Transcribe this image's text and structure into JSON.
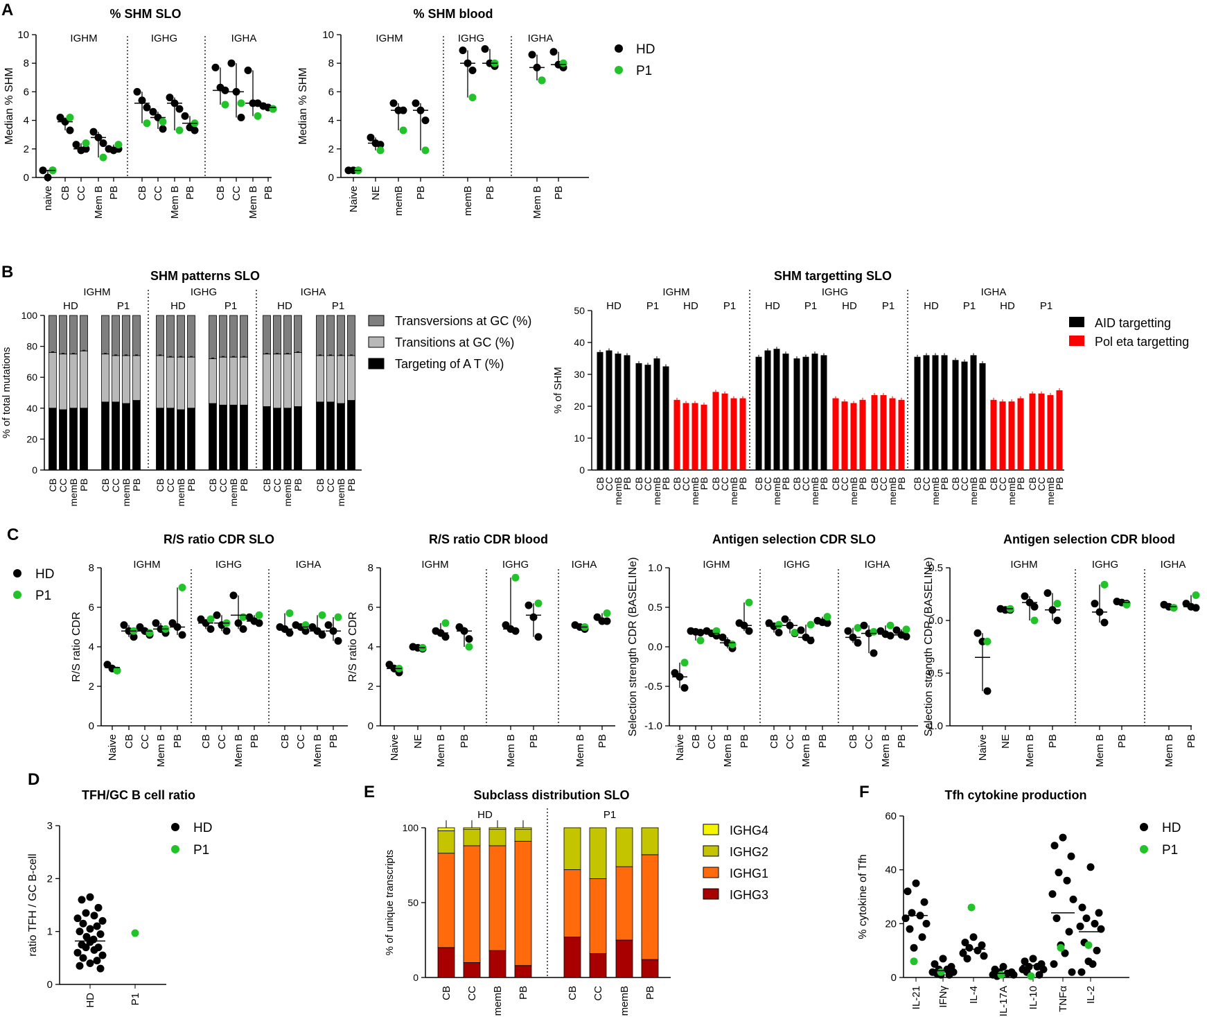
{
  "colors": {
    "hd": "#000000",
    "p1": "#22c32a",
    "aid": "#000000",
    "poleta": "#ff0000",
    "transv": "#7f7f7f",
    "transit": "#b8b8b8",
    "at": "#000000",
    "ighg4": "#f5f500",
    "ighg2": "#c4c400",
    "ighg1": "#ff6a0d",
    "ighg3": "#a80000"
  },
  "panel_letters": [
    "A",
    "B",
    "C",
    "D",
    "E",
    "F"
  ],
  "legends": {
    "hd_p1": [
      "HD",
      "P1"
    ],
    "shm_patterns": [
      "Transversions at GC (%)",
      "Transitions at GC (%)",
      "Targeting of A T (%)"
    ],
    "targeting": [
      "AID targetting",
      "Pol eta targetting"
    ],
    "subclass": [
      "IGHG4",
      "IGHG2",
      "IGHG1",
      "IGHG3"
    ]
  },
  "chart_data": [
    {
      "id": "a1",
      "type": "scatter",
      "title": "% SHM SLO",
      "ylabel": "Median % SHM",
      "ylim": [
        0,
        10
      ],
      "yticks": [
        0,
        2,
        4,
        6,
        8,
        10
      ],
      "groups": [
        {
          "label": "",
          "cats": [
            "naive"
          ]
        },
        {
          "label": "IGHM",
          "cats": [
            "CB",
            "CC",
            "Mem B",
            "PB"
          ]
        },
        {
          "label": "IGHG",
          "cats": [
            "CB",
            "CC",
            "Mem B",
            "PB"
          ]
        },
        {
          "label": "IGHA",
          "cats": [
            "CB",
            "CC",
            "Mem B",
            "PB"
          ]
        }
      ],
      "group_header_span": [
        [
          0,
          1
        ],
        [
          2
        ],
        [
          3
        ]
      ],
      "hd": [
        [
          0.5,
          0,
          0.5
        ],
        [
          4.2,
          3.9,
          3.3
        ],
        [
          2.3,
          1.9,
          2.0
        ],
        [
          3.2,
          2.8,
          2.4
        ],
        [
          2.0,
          1.9,
          2.0
        ],
        [
          6.0,
          5.4,
          4.9
        ],
        [
          4.6,
          4.2,
          3.4
        ],
        [
          5.6,
          5.2,
          4.8
        ],
        [
          4.3,
          3.5,
          3.3
        ],
        [
          7.7,
          6.3,
          6.1
        ],
        [
          8.0,
          6.0,
          4.2
        ],
        [
          7.5,
          5.2,
          5.2
        ],
        [
          5.0,
          4.9,
          4.8
        ]
      ],
      "p1": [
        0.5,
        4.2,
        2.4,
        1.4,
        2.3,
        3.8,
        3.9,
        3.3,
        3.8,
        5.1,
        5.2,
        4.3,
        4.8
      ],
      "median": [
        0.5,
        3.9,
        2.0,
        2.8,
        2.0,
        5.2,
        4.2,
        5.2,
        3.8,
        6.1,
        6.0,
        5.2,
        4.9
      ]
    },
    {
      "id": "a2",
      "type": "scatter",
      "title": "% SHM blood",
      "ylabel": "Median % SHM",
      "ylim": [
        0,
        10
      ],
      "yticks": [
        0,
        2,
        4,
        6,
        8,
        10
      ],
      "groups": [
        {
          "label": "IGHM",
          "cats": [
            "Naive",
            "NE",
            "memB",
            "PB"
          ]
        },
        {
          "label": "IGHG",
          "cats": [
            "memB",
            "PB"
          ]
        },
        {
          "label": "IGHA",
          "cats": [
            "Mem B",
            "PB"
          ]
        }
      ],
      "hd": [
        [
          0.5,
          0.5,
          0.5
        ],
        [
          2.8,
          2.4,
          2.3
        ],
        [
          5.2,
          4.7,
          4.7
        ],
        [
          5.2,
          4.7,
          4.0
        ],
        [
          8.9,
          8.0,
          7.5
        ],
        [
          9.0,
          8.0,
          7.8
        ],
        [
          8.6,
          7.7,
          6.8
        ],
        [
          8.8,
          7.9,
          7.7
        ]
      ],
      "p1": [
        0.5,
        1.9,
        3.3,
        1.9,
        5.6,
        8.0,
        6.8,
        8.0
      ],
      "median": [
        0.5,
        2.4,
        4.7,
        4.7,
        8.0,
        8.0,
        7.7,
        7.9
      ]
    },
    {
      "id": "b1",
      "type": "stacked-bar",
      "title": "SHM patterns SLO",
      "ylabel": "% of total mutations",
      "ylim": [
        0,
        100
      ],
      "yticks": [
        0,
        20,
        40,
        60,
        80,
        100
      ],
      "headers": [
        "IGHM",
        "IGHG",
        "IGHA"
      ],
      "subheaders": [
        "HD",
        "P1",
        "HD",
        "P1",
        "HD",
        "P1"
      ],
      "cats": [
        "CB",
        "CC",
        "memB",
        "PB"
      ],
      "at": [
        40,
        39,
        40,
        40,
        44,
        44,
        43,
        45,
        40,
        40,
        39,
        40,
        43,
        42,
        42,
        42,
        41,
        40,
        40,
        41,
        44,
        44,
        43,
        45
      ],
      "transit": [
        36,
        36,
        35,
        37,
        31,
        30,
        31,
        29,
        34,
        33,
        34,
        33,
        29,
        31,
        31,
        31,
        34,
        35,
        35,
        35,
        30,
        30,
        31,
        29
      ]
    },
    {
      "id": "b2",
      "type": "bar",
      "title": "SHM targetting SLO",
      "ylabel": "% of SHM",
      "ylim": [
        0,
        50
      ],
      "yticks": [
        0,
        10,
        20,
        30,
        40,
        50
      ],
      "headers": [
        "IGHM",
        "IGHG",
        "IGHA"
      ],
      "subheaders": [
        "HD",
        "P1",
        "HD",
        "P1"
      ],
      "cats": [
        "CB",
        "CC",
        "memB",
        "PB"
      ],
      "aid": [
        [
          37,
          37.5,
          36.5,
          36
        ],
        [
          33.5,
          33,
          35,
          32.5
        ],
        [
          35.5,
          37.5,
          38,
          36.5
        ],
        [
          35,
          35.5,
          36.5,
          36
        ],
        [
          35.5,
          36,
          36,
          36
        ],
        [
          34.5,
          34,
          36,
          33.5
        ]
      ],
      "poleta": [
        [
          22,
          21,
          21,
          20.5
        ],
        [
          24.5,
          24,
          22.5,
          22.5
        ],
        [
          22.5,
          21.5,
          21,
          22
        ],
        [
          23.5,
          23.5,
          22.5,
          22
        ],
        [
          22,
          21.5,
          21.5,
          22.5
        ],
        [
          24,
          24,
          23.5,
          25
        ]
      ]
    },
    {
      "id": "c1",
      "type": "scatter",
      "title": "R/S ratio CDR SLO",
      "ylabel": "R/S ratio CDR",
      "ylim": [
        0,
        8
      ],
      "yticks": [
        0,
        2,
        4,
        6,
        8
      ],
      "groups": [
        {
          "label": "IGHM",
          "cats": [
            "Naive",
            "CB",
            "CC",
            "Mem B",
            "PB"
          ]
        },
        {
          "label": "IGHG",
          "cats": [
            "CB",
            "CC",
            "Mem B",
            "PB"
          ]
        },
        {
          "label": "IGHA",
          "cats": [
            "CB",
            "CC",
            "Mem B",
            "PB"
          ]
        }
      ],
      "hd": [
        [
          3.1,
          2.9,
          2.8
        ],
        [
          5.1,
          4.8,
          4.5
        ],
        [
          5.0,
          4.8,
          4.6
        ],
        [
          5.2,
          4.9,
          4.7
        ],
        [
          5.2,
          5.0,
          4.6
        ],
        [
          5.4,
          5.2,
          4.9
        ],
        [
          5.6,
          5.1,
          4.8
        ],
        [
          6.6,
          5.2,
          4.9
        ],
        [
          5.5,
          5.3,
          5.2
        ],
        [
          5.0,
          4.9,
          4.7
        ],
        [
          5.1,
          5.0,
          4.8
        ],
        [
          5.0,
          4.8,
          4.6
        ],
        [
          5.1,
          4.8,
          4.3
        ]
      ],
      "p1": [
        2.8,
        4.8,
        4.7,
        4.9,
        7.0,
        5.4,
        5.2,
        5.5,
        5.6,
        5.7,
        5.1,
        5.6,
        5.5
      ],
      "median": [
        2.95,
        4.8,
        4.8,
        4.9,
        5.0,
        5.2,
        5.2,
        5.6,
        5.3,
        4.9,
        5.0,
        4.8,
        4.8
      ]
    },
    {
      "id": "c2",
      "type": "scatter",
      "title": "R/S ratio CDR blood",
      "ylabel": "R/S ratio CDR",
      "ylim": [
        0,
        8
      ],
      "yticks": [
        0,
        2,
        4,
        6,
        8
      ],
      "groups": [
        {
          "label": "IGHM",
          "cats": [
            "Naive",
            "NE",
            "Mem B",
            "PB"
          ]
        },
        {
          "label": "IGHG",
          "cats": [
            "Mem B",
            "PB"
          ]
        },
        {
          "label": "IGHA",
          "cats": [
            "Mem B",
            "PB"
          ]
        }
      ],
      "hd": [
        [
          3.1,
          2.9,
          2.7
        ],
        [
          4.0,
          3.95,
          3.9
        ],
        [
          4.8,
          4.7,
          4.5
        ],
        [
          5.0,
          4.8,
          4.4
        ],
        [
          5.1,
          4.9,
          4.8
        ],
        [
          6.1,
          5.5,
          4.5
        ],
        [
          5.1,
          5.0,
          4.9
        ],
        [
          5.5,
          5.3,
          5.3
        ]
      ],
      "p1": [
        2.9,
        3.95,
        5.2,
        4.0,
        7.5,
        6.2,
        5.0,
        5.7
      ],
      "median": [
        2.9,
        3.95,
        4.7,
        4.8,
        4.9,
        5.6,
        5.0,
        5.4
      ]
    },
    {
      "id": "c3",
      "type": "scatter",
      "title": "Antigen selection CDR SLO",
      "ylabel": "Selection strength CDR (BASELINe)",
      "ylim": [
        -1,
        1
      ],
      "yticks": [
        -1.0,
        -0.5,
        0.0,
        0.5,
        1.0
      ],
      "groups": [
        {
          "label": "IGHM",
          "cats": [
            "Naive",
            "CB",
            "CC",
            "Mem B",
            "PB"
          ]
        },
        {
          "label": "IGHG",
          "cats": [
            "CB",
            "CC",
            "Mem B",
            "PB"
          ]
        },
        {
          "label": "IGHA",
          "cats": [
            "CB",
            "CC",
            "Mem B",
            "PB"
          ]
        }
      ],
      "hd": [
        [
          -0.33,
          -0.38,
          -0.52
        ],
        [
          0.2,
          0.19,
          0.18
        ],
        [
          0.2,
          0.17,
          0.14
        ],
        [
          0.12,
          0.05,
          -0.02
        ],
        [
          0.3,
          0.27,
          0.2
        ],
        [
          0.3,
          0.26,
          0.18
        ],
        [
          0.35,
          0.27,
          0.17
        ],
        [
          0.21,
          0.12,
          0.08
        ],
        [
          0.33,
          0.31,
          0.3
        ],
        [
          0.2,
          0.12,
          0.05
        ],
        [
          0.27,
          0.17,
          -0.08
        ],
        [
          0.2,
          0.16,
          0.14
        ],
        [
          0.21,
          0.15,
          0.13
        ]
      ],
      "p1": [
        -0.2,
        0.08,
        0.2,
        0.03,
        0.56,
        0.28,
        0.18,
        0.28,
        0.38,
        0.24,
        0.19,
        0.27,
        0.22
      ],
      "median": [
        -0.38,
        0.19,
        0.17,
        0.05,
        0.27,
        0.26,
        0.27,
        0.12,
        0.31,
        0.12,
        0.17,
        0.16,
        0.15
      ]
    },
    {
      "id": "c4",
      "type": "scatter",
      "title": "Antigen selection CDR blood",
      "ylabel": "Selection strength CDR (BASELINe)",
      "ylim": [
        -1,
        0.5
      ],
      "yticks": [
        -1.0,
        -0.5,
        0.0,
        0.5
      ],
      "groups": [
        {
          "label": "IGHM",
          "cats": [
            "Naive",
            "NE",
            "Mem B",
            "PB"
          ]
        },
        {
          "label": "IGHG",
          "cats": [
            "Mem B",
            "PB"
          ]
        },
        {
          "label": "IGHA",
          "cats": [
            "Mem B",
            "PB"
          ]
        }
      ],
      "hd": [
        [
          -0.12,
          -0.2,
          -0.67
        ],
        [
          0.11,
          0.1,
          0.1
        ],
        [
          0.23,
          0.17,
          0.13
        ],
        [
          0.26,
          0.1,
          0.0
        ],
        [
          0.16,
          0.08,
          -0.02
        ],
        [
          0.18,
          0.17,
          0.16
        ],
        [
          0.15,
          0.13,
          0.12
        ],
        [
          0.16,
          0.13,
          0.12
        ]
      ],
      "p1": [
        -0.2,
        0.11,
        0.0,
        0.16,
        0.34,
        0.15,
        0.12,
        0.24
      ],
      "median": [
        -0.35,
        0.11,
        0.17,
        0.1,
        0.08,
        0.17,
        0.13,
        0.13
      ]
    },
    {
      "id": "d",
      "type": "scatter",
      "title": "TFH/GC B cell ratio",
      "ylabel": "ratio TFH / GC B-cell",
      "ylim": [
        0,
        3
      ],
      "yticks": [
        0,
        1,
        2,
        3
      ],
      "cats": [
        "HD",
        "P1"
      ],
      "hd": [
        1.65,
        1.6,
        1.45,
        1.35,
        1.3,
        1.25,
        1.2,
        1.15,
        1.1,
        1.05,
        1.0,
        0.95,
        0.9,
        0.85,
        0.8,
        0.75,
        0.7,
        0.7,
        0.65,
        0.6,
        0.55,
        0.5,
        0.45,
        0.4,
        0.35,
        0.3
      ],
      "p1": [
        0.97
      ],
      "median": 0.82
    },
    {
      "id": "e",
      "type": "stacked-bar",
      "title": "Subclass distribution SLO",
      "ylabel": "% of unique transcripts",
      "ylim": [
        0,
        100
      ],
      "yticks": [
        0,
        50,
        100
      ],
      "groups": [
        "HD",
        "P1"
      ],
      "cats": [
        "CB",
        "CC",
        "memB",
        "PB"
      ],
      "ighg3": [
        20,
        10,
        18,
        8,
        27,
        16,
        25,
        12
      ],
      "ighg1": [
        63,
        78,
        70,
        83,
        45,
        50,
        49,
        70
      ],
      "ighg2": [
        15,
        11,
        11,
        8,
        28,
        34,
        26,
        18
      ],
      "ighg4": [
        2,
        1,
        1,
        1,
        0,
        0,
        0,
        0
      ]
    },
    {
      "id": "f",
      "type": "scatter",
      "title": "Tfh cytokine production",
      "ylabel": "% cytokine of Tfh",
      "ylim": [
        0,
        60
      ],
      "yticks": [
        0,
        20,
        40,
        60
      ],
      "cats": [
        "IL-21",
        "IFNγ",
        "IL-4",
        "IL-17A",
        "IL-10",
        "TNFα",
        "IL-2"
      ],
      "hd": [
        [
          35,
          32,
          28,
          24,
          23,
          22,
          20,
          18,
          15,
          11
        ],
        [
          7,
          5,
          4,
          3,
          3,
          2,
          2,
          1.5,
          1,
          1
        ],
        [
          15,
          13,
          12,
          11,
          10,
          9,
          8,
          7
        ],
        [
          4,
          3,
          2,
          2,
          1.5,
          1,
          1,
          0.5
        ],
        [
          7,
          6,
          5,
          4,
          4,
          3,
          3,
          2,
          1
        ],
        [
          52,
          49,
          45,
          39,
          36,
          31,
          29,
          22,
          17,
          12,
          9,
          5,
          2
        ],
        [
          41,
          26,
          24,
          22,
          20,
          19,
          18,
          13,
          10,
          6,
          5,
          2
        ]
      ],
      "p1": [
        6,
        2,
        26,
        1,
        0.5,
        11,
        12
      ],
      "median": [
        23,
        2.5,
        10.5,
        1.5,
        4.5,
        24,
        17
      ]
    }
  ],
  "labels": {
    "c4_yticklabels": [
      "-1.0",
      "-0.5",
      "0.0",
      "0.5"
    ]
  }
}
